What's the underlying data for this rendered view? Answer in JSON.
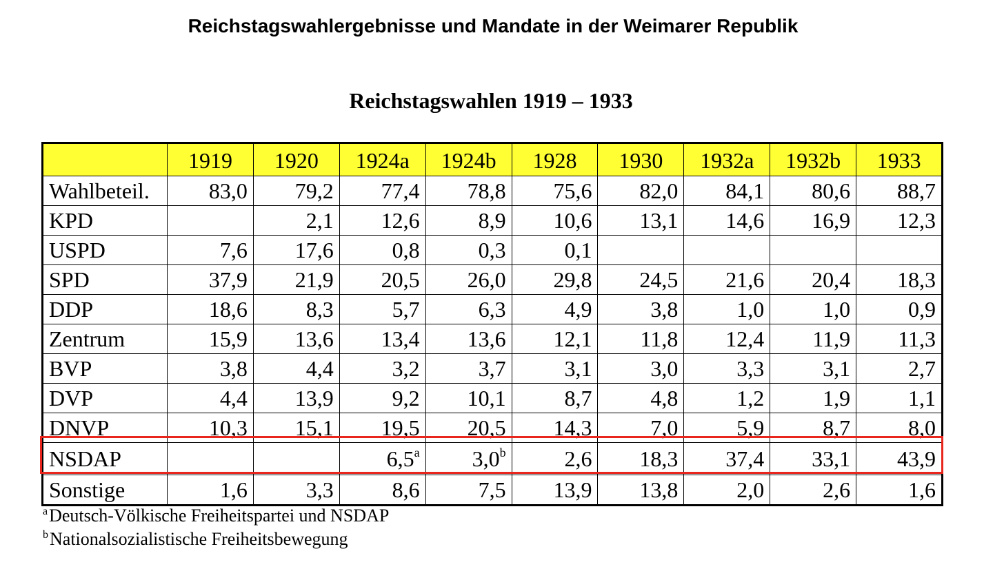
{
  "title": "Reichstagswahlergebnisse und Mandate in der Weimarer Republik",
  "subtitle": "Reichstagswahlen 1919 – 1933",
  "table": {
    "columns": [
      "1919",
      "1920",
      "1924a",
      "1924b",
      "1928",
      "1930",
      "1932a",
      "1932b",
      "1933"
    ],
    "rows": [
      {
        "label": "Wahlbeteil.",
        "values": [
          "83,0",
          "79,2",
          "77,4",
          "78,8",
          "75,6",
          "82,0",
          "84,1",
          "80,6",
          "88,7"
        ]
      },
      {
        "label": "KPD",
        "values": [
          "",
          "2,1",
          "12,6",
          "8,9",
          "10,6",
          "13,1",
          "14,6",
          "16,9",
          "12,3"
        ]
      },
      {
        "label": "USPD",
        "values": [
          "7,6",
          "17,6",
          "0,8",
          "0,3",
          "0,1",
          "",
          "",
          "",
          ""
        ]
      },
      {
        "label": "SPD",
        "values": [
          "37,9",
          "21,9",
          "20,5",
          "26,0",
          "29,8",
          "24,5",
          "21,6",
          "20,4",
          "18,3"
        ]
      },
      {
        "label": "DDP",
        "values": [
          "18,6",
          "8,3",
          "5,7",
          "6,3",
          "4,9",
          "3,8",
          "1,0",
          "1,0",
          "0,9"
        ]
      },
      {
        "label": "Zentrum",
        "values": [
          "15,9",
          "13,6",
          "13,4",
          "13,6",
          "12,1",
          "11,8",
          "12,4",
          "11,9",
          "11,3"
        ]
      },
      {
        "label": "BVP",
        "values": [
          "3,8",
          "4,4",
          "3,2",
          "3,7",
          "3,1",
          "3,0",
          "3,3",
          "3,1",
          "2,7"
        ]
      },
      {
        "label": "DVP",
        "values": [
          "4,4",
          "13,9",
          "9,2",
          "10,1",
          "8,7",
          "4,8",
          "1,2",
          "1,9",
          "1,1"
        ]
      },
      {
        "label": "DNVP",
        "values": [
          "10,3",
          "15,1",
          "19,5",
          "20,5",
          "14,3",
          "7,0",
          "5,9",
          "8,7",
          "8,0"
        ]
      },
      {
        "label": "NSDAP",
        "highlight": true,
        "values": [
          "",
          "",
          "6,5",
          "3,0",
          "2,6",
          "18,3",
          "37,4",
          "33,1",
          "43,9"
        ],
        "notes": [
          "",
          "",
          "a",
          "b",
          "",
          "",
          "",
          "",
          ""
        ]
      },
      {
        "label": "Sonstige",
        "values": [
          "1,6",
          "3,3",
          "8,6",
          "7,5",
          "13,9",
          "13,8",
          "2,0",
          "2,6",
          "1,6"
        ]
      }
    ]
  },
  "footnotes": [
    {
      "mark": "a",
      "text": "Deutsch-Völkische Freiheitspartei und NSDAP"
    },
    {
      "mark": "b",
      "text": "Nationalsozialistische Freiheitsbewegung"
    }
  ],
  "colors": {
    "header_background": "#ffff33",
    "highlight_border": "#e8261e"
  }
}
